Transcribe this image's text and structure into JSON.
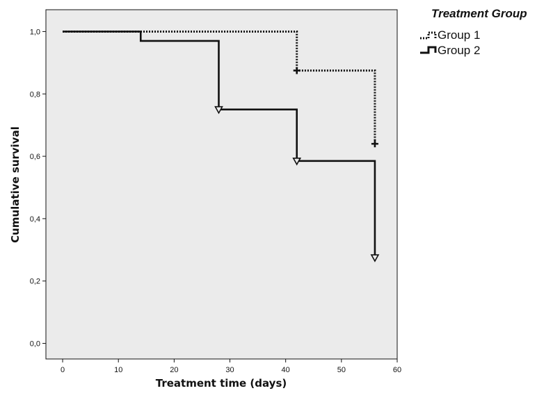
{
  "chart_data": {
    "type": "line",
    "subtype": "kaplan-meier step",
    "xlabel": "Treatment time (days)",
    "ylabel": "Cumulative survival",
    "xlim": [
      -3,
      60
    ],
    "ylim": [
      -0.05,
      1.07
    ],
    "xticks": [
      0,
      10,
      20,
      30,
      40,
      50,
      60
    ],
    "xtick_labels": [
      "0",
      "10",
      "20",
      "30",
      "40",
      "50",
      "60"
    ],
    "yticks": [
      0,
      0.2,
      0.4,
      0.6,
      0.8,
      1.0
    ],
    "ytick_labels": [
      "0,0",
      "0,2",
      "0,4",
      "0,6",
      "0,8",
      "1,0"
    ],
    "grid": false,
    "background": "#ebebeb",
    "legend": {
      "title": "Treatment Group",
      "placement": "top-right, outside plot"
    },
    "series": [
      {
        "name": "Group 1",
        "line_style": "dotted",
        "color": "#111111",
        "censor_marker": "plus",
        "steps": [
          {
            "x": 0,
            "y": 1.0
          },
          {
            "x": 42,
            "y": 0.875
          },
          {
            "x": 56,
            "y": 0.64
          }
        ],
        "censored": [
          {
            "x": 42,
            "y": 0.875
          },
          {
            "x": 56,
            "y": 0.64
          }
        ]
      },
      {
        "name": "Group 2",
        "line_style": "solid",
        "color": "#111111",
        "censor_marker": "triangle-down",
        "steps": [
          {
            "x": 0,
            "y": 1.0
          },
          {
            "x": 14,
            "y": 0.97
          },
          {
            "x": 28,
            "y": 0.75
          },
          {
            "x": 42,
            "y": 0.585
          },
          {
            "x": 56,
            "y": 0.275
          }
        ],
        "censored": [
          {
            "x": 28,
            "y": 0.75
          },
          {
            "x": 42,
            "y": 0.585
          },
          {
            "x": 56,
            "y": 0.275
          }
        ]
      }
    ]
  }
}
